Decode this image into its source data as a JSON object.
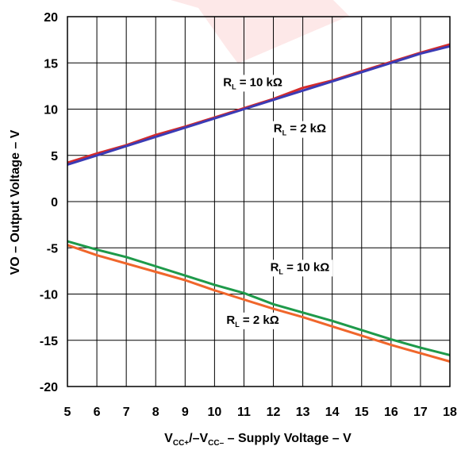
{
  "chart_data": {
    "type": "line",
    "ylabel": "VO – Output Voltage – V",
    "xlabel": {
      "parts": [
        {
          "text": "V",
          "sub": false
        },
        {
          "text": "CC+",
          "sub": true
        },
        {
          "text": "/–V",
          "sub": false
        },
        {
          "text": "CC–",
          "sub": true
        },
        {
          "text": " – Supply Voltage – V",
          "sub": false
        }
      ]
    },
    "xlim": [
      5,
      18
    ],
    "ylim": [
      -20,
      20
    ],
    "x_ticks": [
      "5",
      "6",
      "7",
      "8",
      "9",
      "10",
      "11",
      "12",
      "13",
      "14",
      "15",
      "16",
      "17",
      "18"
    ],
    "y_ticks": [
      "20",
      "15",
      "10",
      "5",
      "0",
      "-5",
      "-10",
      "-15",
      "-20"
    ],
    "grid": true,
    "series": [
      {
        "color": "#d42b2b",
        "x": [
          5,
          6,
          7,
          8,
          9,
          10,
          11,
          12,
          13,
          14,
          15,
          16,
          17,
          18
        ],
        "y": [
          4.2,
          5.2,
          6.1,
          7.2,
          8.1,
          9.1,
          10.1,
          11.1,
          12.3,
          13.1,
          14.1,
          15.1,
          16.1,
          17.0
        ]
      },
      {
        "color": "#3b3bb5",
        "x": [
          5,
          6,
          7,
          8,
          9,
          10,
          11,
          12,
          13,
          14,
          15,
          16,
          17,
          18
        ],
        "y": [
          4.0,
          5.0,
          6.0,
          7.0,
          8.0,
          9.0,
          10.0,
          11.0,
          12.0,
          13.0,
          14.0,
          15.0,
          16.0,
          16.8
        ]
      },
      {
        "color": "#1e9a4a",
        "x": [
          5,
          6,
          7,
          8,
          9,
          10,
          11,
          12,
          13,
          14,
          15,
          16,
          17,
          18
        ],
        "y": [
          -4.3,
          -5.2,
          -6.0,
          -7.0,
          -8.0,
          -9.0,
          -9.9,
          -11.1,
          -12.0,
          -12.9,
          -13.9,
          -14.9,
          -15.8,
          -16.6
        ]
      },
      {
        "color": "#f0662b",
        "x": [
          5,
          6,
          7,
          8,
          9,
          10,
          11,
          12,
          13,
          14,
          15,
          16,
          17,
          18
        ],
        "y": [
          -4.7,
          -5.8,
          -6.7,
          -7.6,
          -8.5,
          -9.6,
          -10.6,
          -11.6,
          -12.5,
          -13.5,
          -14.5,
          -15.5,
          -16.4,
          -17.3
        ]
      }
    ],
    "annotations": [
      {
        "x": 11.3,
        "y": 12.5,
        "main": "R",
        "sub": "L",
        "rest": " = 10 kΩ"
      },
      {
        "x": 12.9,
        "y": 7.5,
        "main": "R",
        "sub": "L",
        "rest": " = 2 kΩ"
      },
      {
        "x": 12.9,
        "y": -7.5,
        "main": "R",
        "sub": "L",
        "rest": " = 10 kΩ"
      },
      {
        "x": 11.3,
        "y": -13.2,
        "main": "R",
        "sub": "L",
        "rest": " = 2 kΩ"
      }
    ]
  }
}
